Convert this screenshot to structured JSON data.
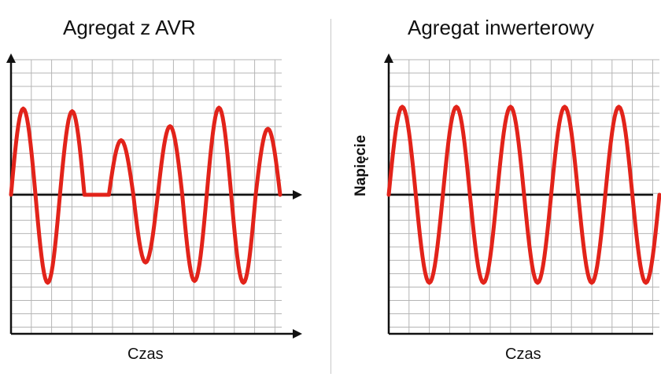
{
  "panels": [
    {
      "title": "Agregat z AVR",
      "xlabel": "Czas",
      "ylabel": ""
    },
    {
      "title": "Agregat inwerterowy",
      "xlabel": "Czas",
      "ylabel": "Napięcie"
    }
  ],
  "colors": {
    "wave": "#e2231a",
    "grid": "#b5b5b5",
    "axis": "#111111"
  },
  "chart_data": [
    {
      "type": "line",
      "title": "Agregat z AVR",
      "xlabel": "Czas",
      "ylabel": "",
      "grid": true,
      "description_values": "irregular sine wave: varying amplitude peaks",
      "peaks": [
        0.98,
        -1.0,
        0.95,
        0.0,
        0.62,
        -0.77,
        0.78,
        -0.98,
        0.99,
        -1.0,
        0.75
      ]
    },
    {
      "type": "line",
      "title": "Agregat inwerterowy",
      "xlabel": "Czas",
      "ylabel": "Napięcie",
      "grid": true,
      "peaks": [
        1.0,
        -1.0,
        1.0,
        -1.0,
        1.0,
        -1.0,
        1.0,
        -1.0,
        1.0,
        -1.0
      ]
    }
  ]
}
